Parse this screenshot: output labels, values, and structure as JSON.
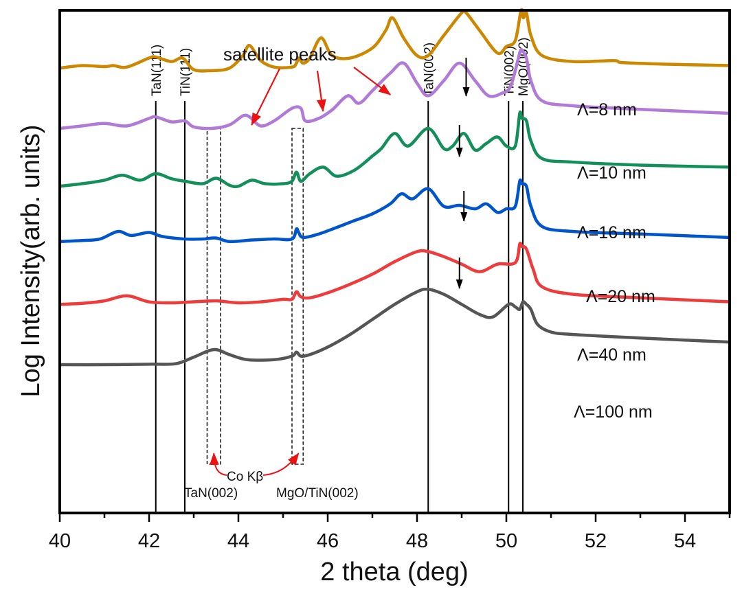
{
  "chart_data": {
    "type": "line",
    "title": "",
    "xlabel": "2 theta (deg)",
    "ylabel": "Log Intensity(arb. units)",
    "xlim": [
      40,
      55
    ],
    "ylim": [
      0,
      10
    ],
    "grid": false,
    "x_ticks": [
      40,
      42,
      44,
      46,
      48,
      50,
      52,
      54
    ],
    "x_minor_ticks": [
      41,
      43,
      45,
      47,
      49,
      51,
      53,
      55
    ],
    "y_ticks": [],
    "reference_lines": [
      {
        "label": "TaN(111)",
        "x": 42.15
      },
      {
        "label": "TiN(111)",
        "x": 42.8
      },
      {
        "label": "TaN(002)",
        "x": 48.25
      },
      {
        "label": "TiN(002)",
        "x": 50.05
      },
      {
        "label": "MgO(002)",
        "x": 50.37
      }
    ],
    "dashed_boxes": [
      {
        "x_range": [
          43.3,
          43.6
        ],
        "label": "TaN(002) Co Kβ"
      },
      {
        "x_range": [
          45.2,
          45.45
        ],
        "label": "MgO/TiN(002) Co Kβ"
      }
    ],
    "annotations": {
      "satellite": "satellite peaks",
      "cokb": "Co Kβ",
      "tan002_cokb": "TaN(002)",
      "mgotin_cokb": "MgO/TiN(002)"
    },
    "satellite_arrow_targets": [
      44.25,
      45.85,
      47.45
    ],
    "black_arrow_targets": [
      {
        "series": "Λ=8 nm",
        "x": 49.1
      },
      {
        "series": "Λ=10 nm",
        "x": 48.95
      },
      {
        "series": "Λ=16 nm",
        "x": 49.05
      },
      {
        "series": "Λ=20 nm",
        "x": 48.95
      }
    ],
    "series": [
      {
        "name": "Λ=8 nm",
        "color": "#cc8800",
        "x": [
          40,
          40.5,
          41,
          41.2,
          41.5,
          42,
          42.15,
          42.5,
          42.75,
          43,
          43.4,
          43.8,
          44.1,
          44.25,
          44.5,
          44.8,
          45.2,
          45.3,
          45.35,
          45.45,
          45.6,
          45.85,
          46.1,
          46.5,
          47,
          47.3,
          47.45,
          47.7,
          48,
          48.25,
          48.6,
          49,
          49.1,
          49.4,
          49.8,
          50.0,
          50.2,
          50.33,
          50.38,
          50.45,
          50.55,
          50.8,
          51.5,
          52.4,
          52.6,
          53.5,
          55
        ],
        "y": [
          8.85,
          8.9,
          8.88,
          8.9,
          8.87,
          9.05,
          9.07,
          8.98,
          9.05,
          8.82,
          8.8,
          8.85,
          9.1,
          9.3,
          9.0,
          8.87,
          8.87,
          8.95,
          9.05,
          8.95,
          9.05,
          9.45,
          9.1,
          9.05,
          9.25,
          9.6,
          9.85,
          9.45,
          9.1,
          9.1,
          9.5,
          9.95,
          9.95,
          9.6,
          9.15,
          9.28,
          9.4,
          10.0,
          9.85,
          9.95,
          9.5,
          9.1,
          8.98,
          9.0,
          8.96,
          8.93,
          8.9
        ]
      },
      {
        "name": "Λ=10 nm",
        "color": "#b07ad6",
        "x": [
          40,
          40.5,
          41,
          41.5,
          42,
          42.15,
          42.5,
          42.8,
          43,
          43.4,
          43.8,
          44.1,
          44.25,
          44.5,
          44.8,
          45.2,
          45.4,
          45.5,
          45.8,
          46.1,
          46.45,
          46.7,
          47,
          47.4,
          47.7,
          48,
          48.25,
          48.6,
          48.95,
          49.3,
          49.6,
          49.9,
          50.1,
          50.3,
          50.35,
          50.45,
          50.55,
          50.8,
          51.5,
          53,
          55
        ],
        "y": [
          7.65,
          7.7,
          7.75,
          7.7,
          7.85,
          7.88,
          7.78,
          7.8,
          7.68,
          7.65,
          7.72,
          7.9,
          7.88,
          7.7,
          7.8,
          8.05,
          8.05,
          7.8,
          7.85,
          8.02,
          8.3,
          8.15,
          8.4,
          8.75,
          8.95,
          8.55,
          8.3,
          8.6,
          8.95,
          8.6,
          8.3,
          8.35,
          8.5,
          9.15,
          9.2,
          9.05,
          8.6,
          8.2,
          8.1,
          8.03,
          7.95
        ]
      },
      {
        "name": "Λ=16 nm",
        "color": "#138f5a",
        "x": [
          40,
          40.5,
          41,
          41.4,
          41.8,
          42.15,
          42.5,
          42.8,
          43.2,
          43.5,
          43.8,
          44.0,
          44.3,
          44.6,
          45.0,
          45.2,
          45.3,
          45.4,
          45.6,
          45.9,
          46.2,
          46.6,
          47.0,
          47.2,
          47.5,
          47.8,
          48.25,
          48.6,
          48.8,
          49.05,
          49.3,
          49.55,
          49.8,
          50.0,
          50.2,
          50.3,
          50.35,
          50.45,
          50.55,
          50.8,
          51.5,
          53,
          55
        ],
        "y": [
          6.5,
          6.55,
          6.62,
          6.72,
          6.62,
          6.75,
          6.65,
          6.6,
          6.55,
          6.66,
          6.52,
          6.5,
          6.62,
          6.55,
          6.55,
          6.6,
          6.78,
          6.6,
          6.75,
          6.88,
          6.7,
          6.82,
          7.1,
          7.25,
          7.55,
          7.3,
          7.65,
          7.25,
          7.3,
          7.55,
          7.22,
          7.35,
          7.48,
          7.3,
          7.3,
          7.95,
          7.85,
          7.8,
          7.4,
          7.05,
          6.98,
          6.92,
          6.88
        ]
      },
      {
        "name": "Λ=20 nm",
        "color": "#0055cc",
        "x": [
          40,
          40.5,
          40.9,
          41.3,
          41.6,
          42.0,
          42.3,
          42.8,
          43.2,
          43.5,
          43.8,
          44.3,
          44.8,
          45.2,
          45.3,
          45.35,
          45.45,
          45.8,
          46.2,
          46.55,
          47,
          47.4,
          47.65,
          47.9,
          48.25,
          48.6,
          48.95,
          49.3,
          49.55,
          49.8,
          50.0,
          50.2,
          50.3,
          50.35,
          50.45,
          50.55,
          50.8,
          51.5,
          53,
          55
        ],
        "y": [
          5.4,
          5.42,
          5.45,
          5.6,
          5.52,
          5.58,
          5.5,
          5.45,
          5.45,
          5.47,
          5.4,
          5.43,
          5.45,
          5.45,
          5.65,
          5.58,
          5.48,
          5.55,
          5.68,
          5.8,
          5.95,
          6.15,
          6.35,
          6.25,
          6.45,
          6.1,
          6.12,
          6.05,
          6.15,
          5.98,
          6.05,
          6.1,
          6.6,
          6.55,
          6.5,
          6.1,
          5.7,
          5.6,
          5.55,
          5.48
        ]
      },
      {
        "name": "Λ=40 nm",
        "color": "#ee3b3b",
        "x": [
          40,
          40.5,
          41,
          41.5,
          42,
          42.5,
          43,
          43.5,
          44,
          44.5,
          45,
          45.2,
          45.3,
          45.4,
          45.6,
          46,
          46.5,
          47,
          47.5,
          48,
          48.25,
          48.6,
          49,
          49.4,
          49.8,
          50.2,
          50.3,
          50.35,
          50.45,
          50.6,
          50.8,
          51.5,
          53,
          55
        ],
        "y": [
          4.15,
          4.17,
          4.22,
          4.32,
          4.2,
          4.18,
          4.2,
          4.22,
          4.18,
          4.2,
          4.25,
          4.25,
          4.4,
          4.3,
          4.28,
          4.38,
          4.55,
          4.75,
          5.0,
          5.2,
          5.2,
          5.1,
          4.95,
          4.8,
          4.95,
          4.98,
          5.35,
          5.3,
          5.25,
          4.85,
          4.5,
          4.35,
          4.28,
          4.2
        ]
      },
      {
        "name": "Λ=100 nm",
        "color": "#555555",
        "x": [
          40,
          41,
          42,
          42.6,
          43,
          43.45,
          43.8,
          44.2,
          44.8,
          45.2,
          45.3,
          45.4,
          45.6,
          46,
          46.5,
          47,
          47.5,
          48,
          48.25,
          48.6,
          49,
          49.4,
          49.7,
          50.05,
          50.2,
          50.3,
          50.37,
          50.45,
          50.55,
          50.7,
          51,
          51.5,
          53,
          55
        ],
        "y": [
          2.95,
          2.95,
          2.96,
          2.97,
          3.1,
          3.25,
          3.15,
          3.05,
          3.05,
          3.12,
          3.2,
          3.12,
          3.15,
          3.3,
          3.55,
          3.85,
          4.15,
          4.4,
          4.45,
          4.35,
          4.15,
          3.95,
          3.9,
          4.15,
          4.1,
          4.05,
          4.2,
          4.15,
          4.05,
          3.75,
          3.6,
          3.55,
          3.48,
          3.4
        ]
      }
    ]
  }
}
